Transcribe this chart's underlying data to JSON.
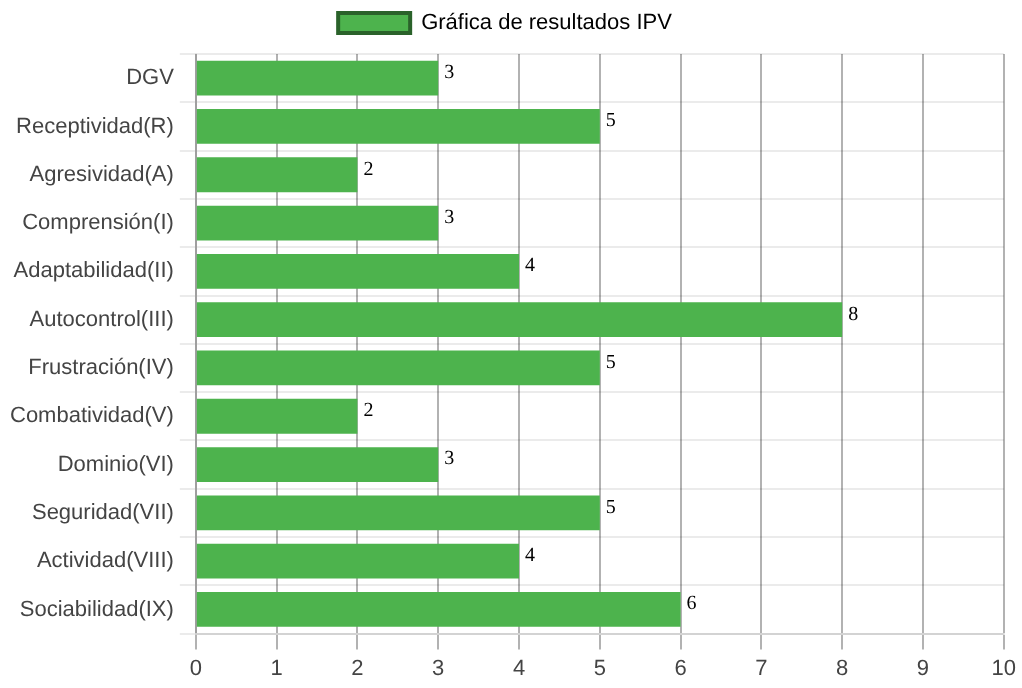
{
  "chart_data": {
    "type": "bar",
    "orientation": "horizontal",
    "categories": [
      "DGV",
      "Receptividad(R)",
      "Agresividad(A)",
      "Comprensión(I)",
      "Adaptabilidad(II)",
      "Autocontrol(III)",
      "Frustración(IV)",
      "Combatividad(V)",
      "Dominio(VI)",
      "Seguridad(VII)",
      "Actividad(VIII)",
      "Sociabilidad(IX)"
    ],
    "series": [
      {
        "name": "Gráfica de resultados IPV",
        "color": "#4db34d",
        "values": [
          3,
          5,
          2,
          3,
          4,
          8,
          5,
          2,
          3,
          5,
          4,
          6
        ]
      }
    ],
    "xlim": [
      0,
      10
    ],
    "xticks": [
      0,
      1,
      2,
      3,
      4,
      5,
      6,
      7,
      8,
      9,
      10
    ],
    "grid": true,
    "legend": "top",
    "data_labels": true
  }
}
